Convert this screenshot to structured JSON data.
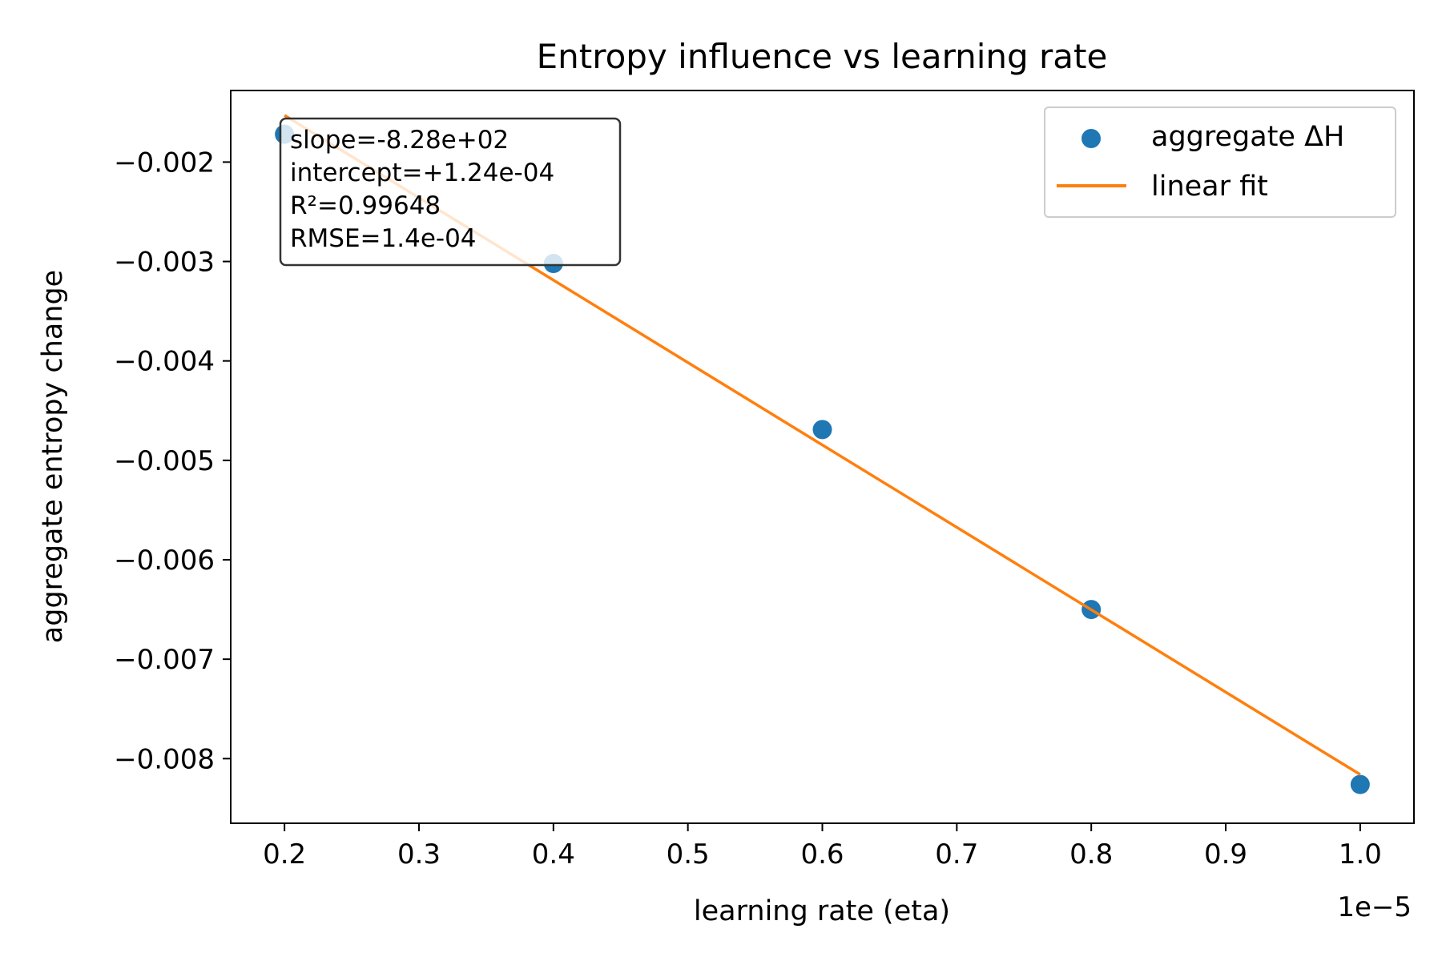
{
  "chart_data": {
    "type": "scatter",
    "title": "Entropy influence vs learning rate",
    "xlabel": "learning rate (eta)",
    "ylabel": "aggregate entropy change",
    "x_offset_label": "1e−5",
    "xlim": [
      0.16,
      1.04
    ],
    "ylim": [
      -0.00865,
      -0.00128
    ],
    "x_ticks": [
      0.2,
      0.3,
      0.4,
      0.5,
      0.6,
      0.7,
      0.8,
      0.9,
      1.0
    ],
    "x_tick_labels": [
      "0.2",
      "0.3",
      "0.4",
      "0.5",
      "0.6",
      "0.7",
      "0.8",
      "0.9",
      "1.0"
    ],
    "y_ticks": [
      -0.002,
      -0.003,
      -0.004,
      -0.005,
      -0.006,
      -0.007,
      -0.008
    ],
    "y_tick_labels": [
      "−0.002",
      "−0.003",
      "−0.004",
      "−0.005",
      "−0.006",
      "−0.007",
      "−0.008"
    ],
    "series": [
      {
        "name": "aggregate ΔH",
        "kind": "scatter",
        "color": "#1f77b4",
        "x": [
          0.2,
          0.4,
          0.6,
          0.8,
          1.0
        ],
        "y": [
          -0.00172,
          -0.00302,
          -0.00469,
          -0.0065,
          -0.00826
        ]
      },
      {
        "name": "linear fit",
        "kind": "line",
        "color": "#ff7f0e",
        "x": [
          0.2,
          1.0
        ],
        "y": [
          -0.00153,
          -0.00816
        ]
      }
    ],
    "annotation": {
      "lines": [
        "slope=-8.28e+02",
        "intercept=+1.24e-04",
        "R²=0.99648",
        "RMSE=1.4e-04"
      ]
    },
    "legend": {
      "placement": "upper-right"
    },
    "grid": false
  }
}
